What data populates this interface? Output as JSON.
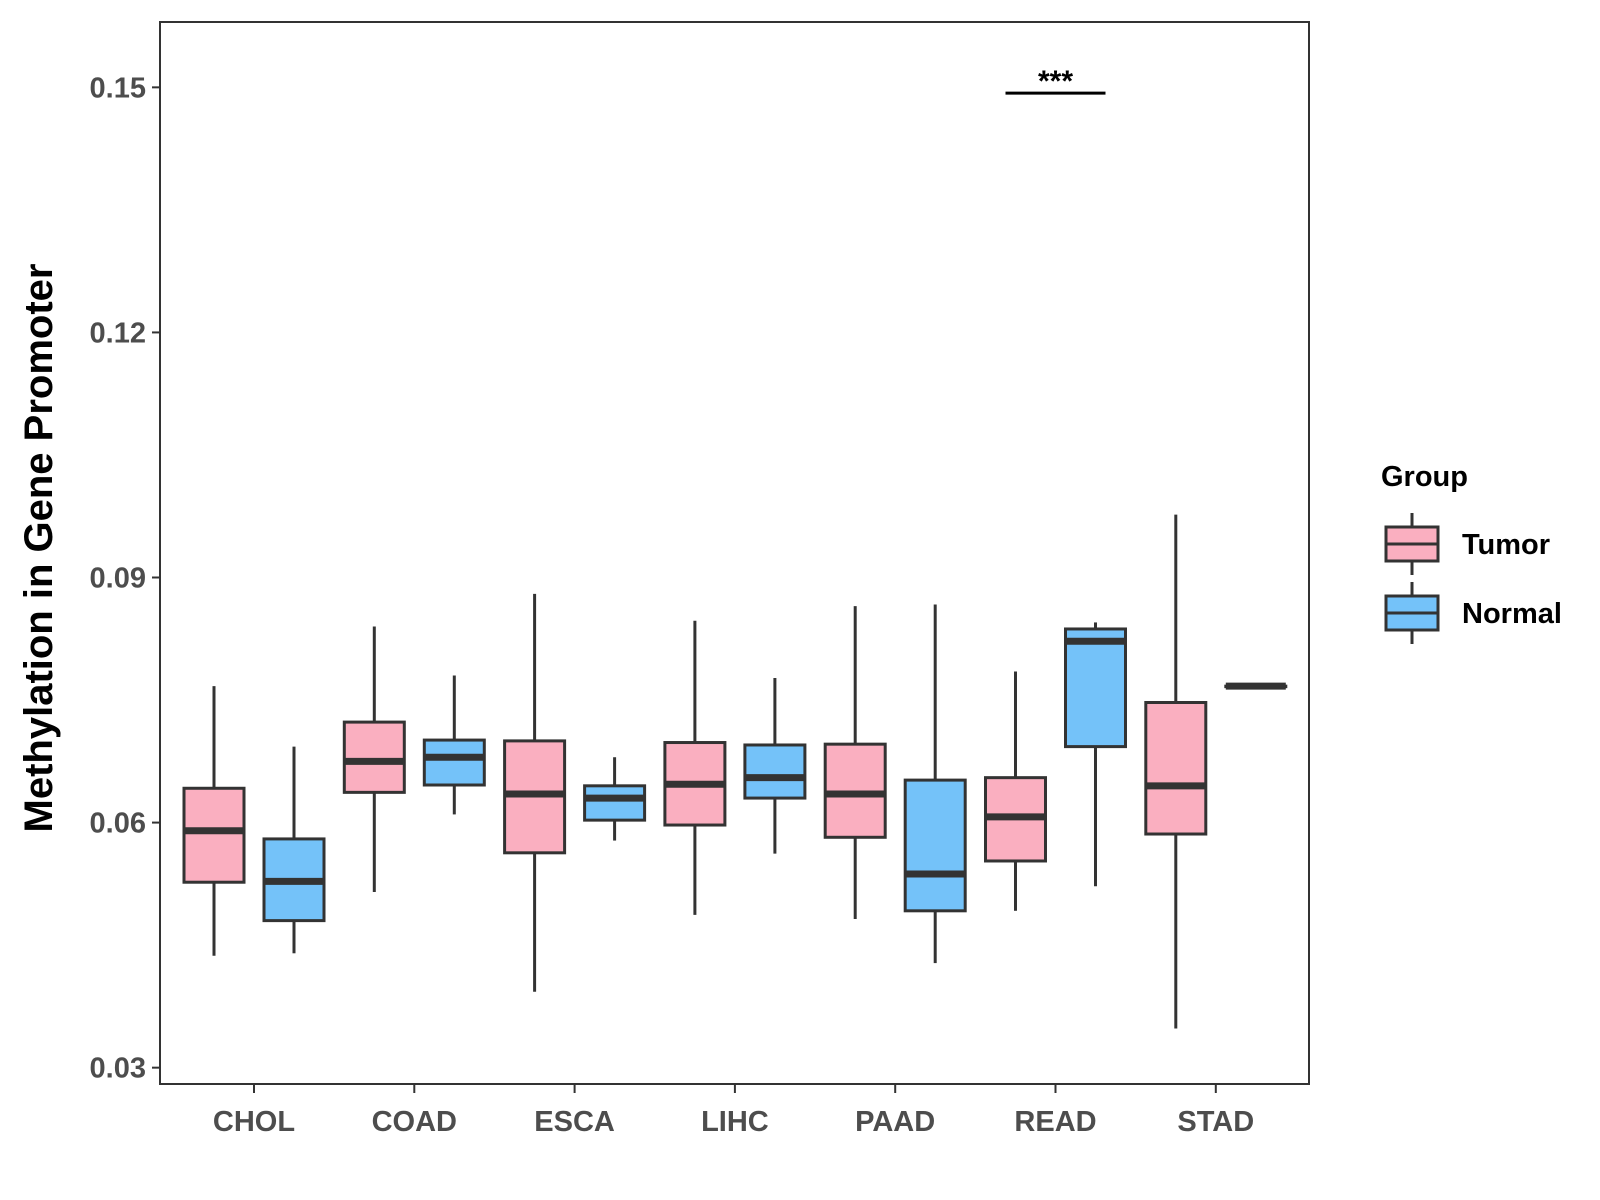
{
  "chart_data": {
    "type": "boxplot",
    "title": "",
    "xlabel": "",
    "ylabel": "Methylation in Gene Promoter",
    "ylim": [
      0.028,
      0.158
    ],
    "yticks": [
      0.03,
      0.06,
      0.09,
      0.12,
      0.15
    ],
    "ytick_labels": [
      "0.03",
      "0.06",
      "0.09",
      "0.12",
      "0.15"
    ],
    "categories": [
      "CHOL",
      "COAD",
      "ESCA",
      "LIHC",
      "PAAD",
      "READ",
      "STAD"
    ],
    "grid": false,
    "legend": {
      "title": "Group",
      "placement": "right",
      "entries": [
        {
          "name": "Tumor",
          "color": "#FAAFC0"
        },
        {
          "name": "Normal",
          "color": "#74C2F9"
        }
      ]
    },
    "series": [
      {
        "name": "Tumor",
        "color": "#FAAFC0",
        "boxes": [
          {
            "category": "CHOL",
            "min": 0.0437,
            "q1": 0.0527,
            "median": 0.059,
            "q3": 0.0642,
            "max": 0.0767
          },
          {
            "category": "COAD",
            "min": 0.0515,
            "q1": 0.0637,
            "median": 0.0675,
            "q3": 0.0723,
            "max": 0.084
          },
          {
            "category": "ESCA",
            "min": 0.0393,
            "q1": 0.0563,
            "median": 0.0635,
            "q3": 0.07,
            "max": 0.088
          },
          {
            "category": "LIHC",
            "min": 0.0487,
            "q1": 0.0597,
            "median": 0.0647,
            "q3": 0.0698,
            "max": 0.0847
          },
          {
            "category": "PAAD",
            "min": 0.0482,
            "q1": 0.0582,
            "median": 0.0635,
            "q3": 0.0696,
            "max": 0.0865
          },
          {
            "category": "READ",
            "min": 0.0492,
            "q1": 0.0553,
            "median": 0.0607,
            "q3": 0.0655,
            "max": 0.0785
          },
          {
            "category": "STAD",
            "min": 0.0348,
            "q1": 0.0586,
            "median": 0.0645,
            "q3": 0.0747,
            "max": 0.0977
          }
        ]
      },
      {
        "name": "Normal",
        "color": "#74C2F9",
        "boxes": [
          {
            "category": "CHOL",
            "min": 0.044,
            "q1": 0.048,
            "median": 0.0528,
            "q3": 0.058,
            "max": 0.0693
          },
          {
            "category": "COAD",
            "min": 0.061,
            "q1": 0.0646,
            "median": 0.068,
            "q3": 0.0701,
            "max": 0.078
          },
          {
            "category": "ESCA",
            "min": 0.0578,
            "q1": 0.0603,
            "median": 0.063,
            "q3": 0.0645,
            "max": 0.068
          },
          {
            "category": "LIHC",
            "min": 0.0562,
            "q1": 0.063,
            "median": 0.0655,
            "q3": 0.0695,
            "max": 0.0777
          },
          {
            "category": "PAAD",
            "min": 0.0428,
            "q1": 0.0492,
            "median": 0.0537,
            "q3": 0.0652,
            "max": 0.0867
          },
          {
            "category": "READ",
            "min": 0.0522,
            "q1": 0.0693,
            "median": 0.0822,
            "q3": 0.0837,
            "max": 0.0845
          },
          {
            "category": "STAD",
            "min": 0.0767,
            "q1": 0.0767,
            "median": 0.0767,
            "q3": 0.0767,
            "max": 0.0767
          }
        ]
      }
    ],
    "annotations": [
      {
        "text": "***",
        "category": "READ",
        "y": 0.1493
      }
    ]
  }
}
